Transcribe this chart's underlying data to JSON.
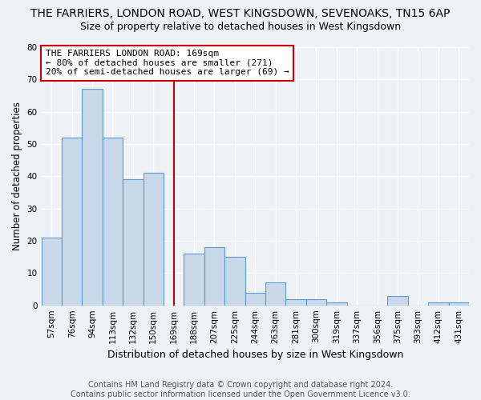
{
  "title": "THE FARRIERS, LONDON ROAD, WEST KINGSDOWN, SEVENOAKS, TN15 6AP",
  "subtitle": "Size of property relative to detached houses in West Kingsdown",
  "xlabel": "Distribution of detached houses by size in West Kingsdown",
  "ylabel": "Number of detached properties",
  "bar_labels": [
    "57sqm",
    "76sqm",
    "94sqm",
    "113sqm",
    "132sqm",
    "150sqm",
    "169sqm",
    "188sqm",
    "207sqm",
    "225sqm",
    "244sqm",
    "263sqm",
    "281sqm",
    "300sqm",
    "319sqm",
    "337sqm",
    "356sqm",
    "375sqm",
    "393sqm",
    "412sqm",
    "431sqm"
  ],
  "bar_values": [
    21,
    52,
    67,
    52,
    39,
    41,
    0,
    16,
    18,
    15,
    4,
    7,
    2,
    2,
    1,
    0,
    0,
    3,
    0,
    1,
    1
  ],
  "bar_color": "#c8d8e8",
  "bar_edge_color": "#5b9bd5",
  "vline_color": "#cc0000",
  "annotation_line1": "THE FARRIERS LONDON ROAD: 169sqm",
  "annotation_line2": "← 80% of detached houses are smaller (271)",
  "annotation_line3": "20% of semi-detached houses are larger (69) →",
  "annotation_box_color": "white",
  "annotation_box_edge": "#cc0000",
  "ylim": [
    0,
    80
  ],
  "yticks": [
    0,
    10,
    20,
    30,
    40,
    50,
    60,
    70,
    80
  ],
  "footer_text": "Contains HM Land Registry data © Crown copyright and database right 2024.\nContains public sector information licensed under the Open Government Licence v3.0.",
  "background_color": "#eef2f7",
  "title_fontsize": 10,
  "subtitle_fontsize": 9,
  "xlabel_fontsize": 9,
  "ylabel_fontsize": 8.5,
  "tick_fontsize": 7.5,
  "annotation_fontsize": 8,
  "footer_fontsize": 7
}
